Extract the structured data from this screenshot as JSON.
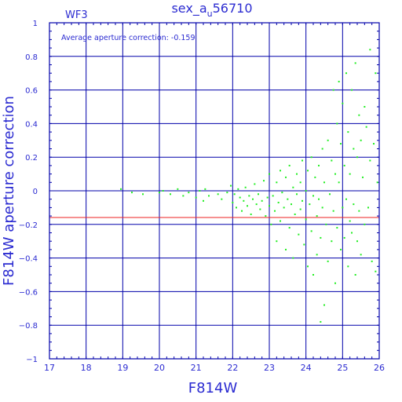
{
  "chart_data": {
    "type": "scatter",
    "title": "sex_a",
    "title_subscript": "u",
    "title_suffix": "56710",
    "chip_label": "WF3",
    "annotation": "Average aperture correction: -0.159",
    "xlabel": "F814W",
    "ylabel": "F814W aperture correction",
    "xlim": [
      17,
      26
    ],
    "ylim": [
      -1,
      1
    ],
    "x_ticks": [
      17,
      18,
      19,
      20,
      21,
      22,
      23,
      24,
      25,
      26
    ],
    "y_ticks": [
      -1,
      -0.8,
      -0.6,
      -0.4,
      -0.2,
      0,
      0.2,
      0.4,
      0.6,
      0.8,
      1
    ],
    "grid": true,
    "average_line": -0.159,
    "colors": {
      "axes": "#0000aa",
      "text": "#2b2bd1",
      "points": "#22ee22",
      "average_line": "#ee2222"
    },
    "series": [
      {
        "points": [
          [
            18.95,
            0.01
          ],
          [
            19.25,
            -0.01
          ],
          [
            19.55,
            -0.02
          ],
          [
            20.0,
            -0.01
          ],
          [
            20.1,
            0.0
          ],
          [
            20.3,
            -0.02
          ],
          [
            20.5,
            0.01
          ],
          [
            20.65,
            -0.03
          ],
          [
            20.8,
            -0.01
          ],
          [
            21.0,
            -0.04
          ],
          [
            21.1,
            0.0
          ],
          [
            21.2,
            -0.06
          ],
          [
            21.25,
            0.01
          ],
          [
            21.35,
            -0.03
          ],
          [
            21.6,
            -0.02
          ],
          [
            21.7,
            -0.05
          ],
          [
            21.85,
            -0.01
          ],
          [
            21.95,
            0.03
          ],
          [
            22.0,
            -0.07
          ],
          [
            22.05,
            -0.02
          ],
          [
            22.1,
            -0.1
          ],
          [
            22.15,
            0.01
          ],
          [
            22.2,
            -0.04
          ],
          [
            22.25,
            -0.12
          ],
          [
            22.3,
            -0.06
          ],
          [
            22.35,
            0.02
          ],
          [
            22.4,
            -0.09
          ],
          [
            22.45,
            -0.03
          ],
          [
            22.5,
            -0.14
          ],
          [
            22.55,
            -0.05
          ],
          [
            22.6,
            0.04
          ],
          [
            22.65,
            -0.08
          ],
          [
            22.7,
            -0.02
          ],
          [
            22.75,
            -0.11
          ],
          [
            22.8,
            -0.06
          ],
          [
            22.85,
            0.06
          ],
          [
            22.9,
            -0.15
          ],
          [
            22.95,
            -0.04
          ],
          [
            23.0,
            -0.09
          ],
          [
            23.0,
            0.1
          ],
          [
            23.05,
            -0.2
          ],
          [
            23.1,
            -0.03
          ],
          [
            23.15,
            -0.12
          ],
          [
            23.2,
            0.05
          ],
          [
            23.2,
            -0.3
          ],
          [
            23.25,
            -0.07
          ],
          [
            23.3,
            0.12
          ],
          [
            23.3,
            -0.18
          ],
          [
            23.35,
            -0.01
          ],
          [
            23.4,
            -0.1
          ],
          [
            23.45,
            0.08
          ],
          [
            23.45,
            -0.35
          ],
          [
            23.5,
            -0.05
          ],
          [
            23.55,
            -0.22
          ],
          [
            23.55,
            0.15
          ],
          [
            23.6,
            -0.08
          ],
          [
            23.65,
            0.02
          ],
          [
            23.65,
            -0.4
          ],
          [
            23.7,
            -0.14
          ],
          [
            23.75,
            0.1
          ],
          [
            23.75,
            -0.02
          ],
          [
            23.8,
            -0.26
          ],
          [
            23.85,
            0.05
          ],
          [
            23.85,
            -0.11
          ],
          [
            23.9,
            0.18
          ],
          [
            23.9,
            -0.06
          ],
          [
            23.95,
            -0.32
          ],
          [
            24.0,
            0.0
          ],
          [
            24.0,
            -0.17
          ],
          [
            24.05,
            0.12
          ],
          [
            24.05,
            -0.45
          ],
          [
            24.1,
            -0.08
          ],
          [
            24.15,
            0.2
          ],
          [
            24.15,
            -0.24
          ],
          [
            24.2,
            -0.03
          ],
          [
            24.2,
            -0.5
          ],
          [
            24.25,
            0.08
          ],
          [
            24.3,
            -0.15
          ],
          [
            24.3,
            -0.38
          ],
          [
            24.35,
            0.15
          ],
          [
            24.35,
            -0.05
          ],
          [
            24.4,
            -0.78
          ],
          [
            24.4,
            -0.28
          ],
          [
            24.45,
            0.25
          ],
          [
            24.45,
            -0.1
          ],
          [
            24.5,
            -0.68
          ],
          [
            24.5,
            0.05
          ],
          [
            24.55,
            -0.2
          ],
          [
            24.6,
            0.3
          ],
          [
            24.6,
            -0.42
          ],
          [
            24.65,
            -0.02
          ],
          [
            24.7,
            0.18
          ],
          [
            24.7,
            -0.3
          ],
          [
            24.75,
            0.6
          ],
          [
            24.75,
            -0.12
          ],
          [
            24.8,
            0.1
          ],
          [
            24.8,
            -0.55
          ],
          [
            24.85,
            0.4
          ],
          [
            24.85,
            -0.22
          ],
          [
            24.9,
            0.05
          ],
          [
            24.9,
            0.65
          ],
          [
            24.95,
            -0.35
          ],
          [
            24.95,
            0.28
          ],
          [
            25.0,
            -0.1
          ],
          [
            25.0,
            0.52
          ],
          [
            25.05,
            0.15
          ],
          [
            25.05,
            -0.28
          ],
          [
            25.1,
            0.7
          ],
          [
            25.1,
            -0.05
          ],
          [
            25.15,
            0.35
          ],
          [
            25.15,
            -0.45
          ],
          [
            25.2,
            0.1
          ],
          [
            25.2,
            -0.18
          ],
          [
            25.25,
            0.6
          ],
          [
            25.25,
            -0.25
          ],
          [
            25.3,
            0.25
          ],
          [
            25.3,
            -0.08
          ],
          [
            25.35,
            0.76
          ],
          [
            25.35,
            -0.5
          ],
          [
            25.4,
            0.2
          ],
          [
            25.4,
            -0.3
          ],
          [
            25.45,
            0.45
          ],
          [
            25.45,
            -0.12
          ],
          [
            25.5,
            0.3
          ],
          [
            25.5,
            -0.38
          ],
          [
            25.55,
            0.08
          ],
          [
            25.6,
            0.5
          ],
          [
            25.6,
            -0.2
          ],
          [
            25.65,
            0.38
          ],
          [
            25.7,
            -0.1
          ],
          [
            25.75,
            0.84
          ],
          [
            25.75,
            0.18
          ],
          [
            25.8,
            -0.42
          ],
          [
            25.85,
            0.28
          ],
          [
            25.9,
            0.7
          ],
          [
            25.9,
            -0.48
          ],
          [
            25.95,
            0.05
          ]
        ]
      }
    ]
  }
}
